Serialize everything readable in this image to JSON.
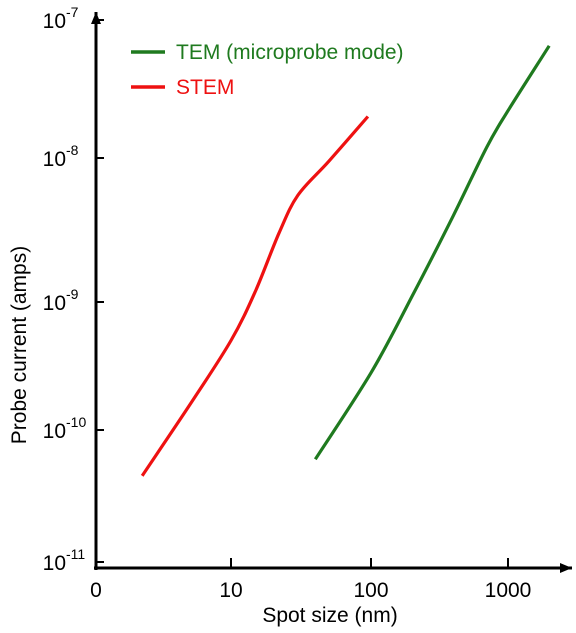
{
  "chart_data": {
    "type": "line",
    "xlabel": "Spot size (nm)",
    "ylabel": "Probe current (amps)",
    "x_scale": "log",
    "y_scale": "log",
    "xlim": [
      1,
      3000
    ],
    "ylim": [
      1e-11,
      1e-07
    ],
    "x_tick_labels": [
      "0",
      "10",
      "100",
      "1000"
    ],
    "y_tick_labels": [
      {
        "base": "10",
        "exp": "-7"
      },
      {
        "base": "10",
        "exp": "-8"
      },
      {
        "base": "10",
        "exp": "-9"
      },
      {
        "base": "10",
        "exp": "-10"
      },
      {
        "base": "10",
        "exp": "-11"
      }
    ],
    "grid": false,
    "legend_position": "top-left",
    "series": [
      {
        "name": "TEM (microprobe mode)",
        "color": "#1f7a1f",
        "points": [
          [
            40,
            6e-11
          ],
          [
            100,
            2.8e-10
          ],
          [
            200,
            1.1e-09
          ],
          [
            400,
            4e-09
          ],
          [
            700,
            1.2e-08
          ],
          [
            1000,
            2.2e-08
          ],
          [
            2000,
            6.5e-08
          ]
        ]
      },
      {
        "name": "STEM",
        "color": "#ee1111",
        "points": [
          [
            2.2,
            4.5e-11
          ],
          [
            5,
            1.6e-10
          ],
          [
            10,
            5e-10
          ],
          [
            15,
            1.2e-09
          ],
          [
            22,
            3e-09
          ],
          [
            30,
            5.5e-09
          ],
          [
            50,
            9.5e-09
          ],
          [
            95,
            2e-08
          ]
        ]
      }
    ]
  }
}
